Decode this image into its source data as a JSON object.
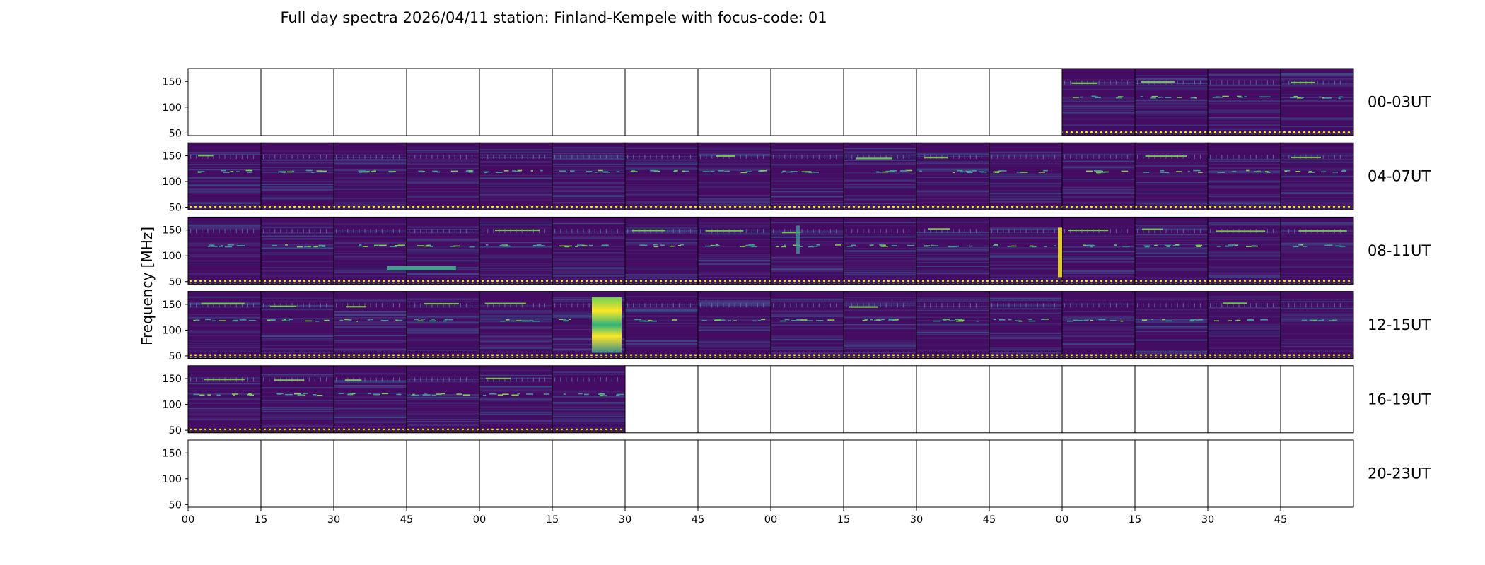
{
  "chart_data": {
    "type": "heatmap",
    "title": "Full day spectra 2026/04/11 station: Finland-Kempele with focus-code: 01",
    "ylabel": "Frequency [MHz]",
    "xlabel": "",
    "ylim": [
      45,
      175
    ],
    "y_ticks": [
      50,
      100,
      150
    ],
    "x_tick_labels": [
      "00",
      "15",
      "30",
      "45",
      "00",
      "15",
      "30",
      "45",
      "00",
      "15",
      "30",
      "45",
      "00",
      "15",
      "30",
      "45"
    ],
    "panels_per_row": 16,
    "rows": [
      {
        "label": "00-03UT",
        "filled_from": 12,
        "filled_to": 15
      },
      {
        "label": "04-07UT",
        "filled_from": 0,
        "filled_to": 15
      },
      {
        "label": "08-11UT",
        "filled_from": 0,
        "filled_to": 15
      },
      {
        "label": "12-15UT",
        "filled_from": 0,
        "filled_to": 15
      },
      {
        "label": "16-19UT",
        "filled_from": 0,
        "filled_to": 5
      },
      {
        "label": "20-23UT",
        "filled_from": -1,
        "filled_to": -1
      }
    ],
    "colormap": "viridis",
    "colors": {
      "background": "#440d63",
      "band": "#3f9a94",
      "bright": "#7bd04a",
      "burst": "#fde725",
      "border": "#000000"
    }
  }
}
